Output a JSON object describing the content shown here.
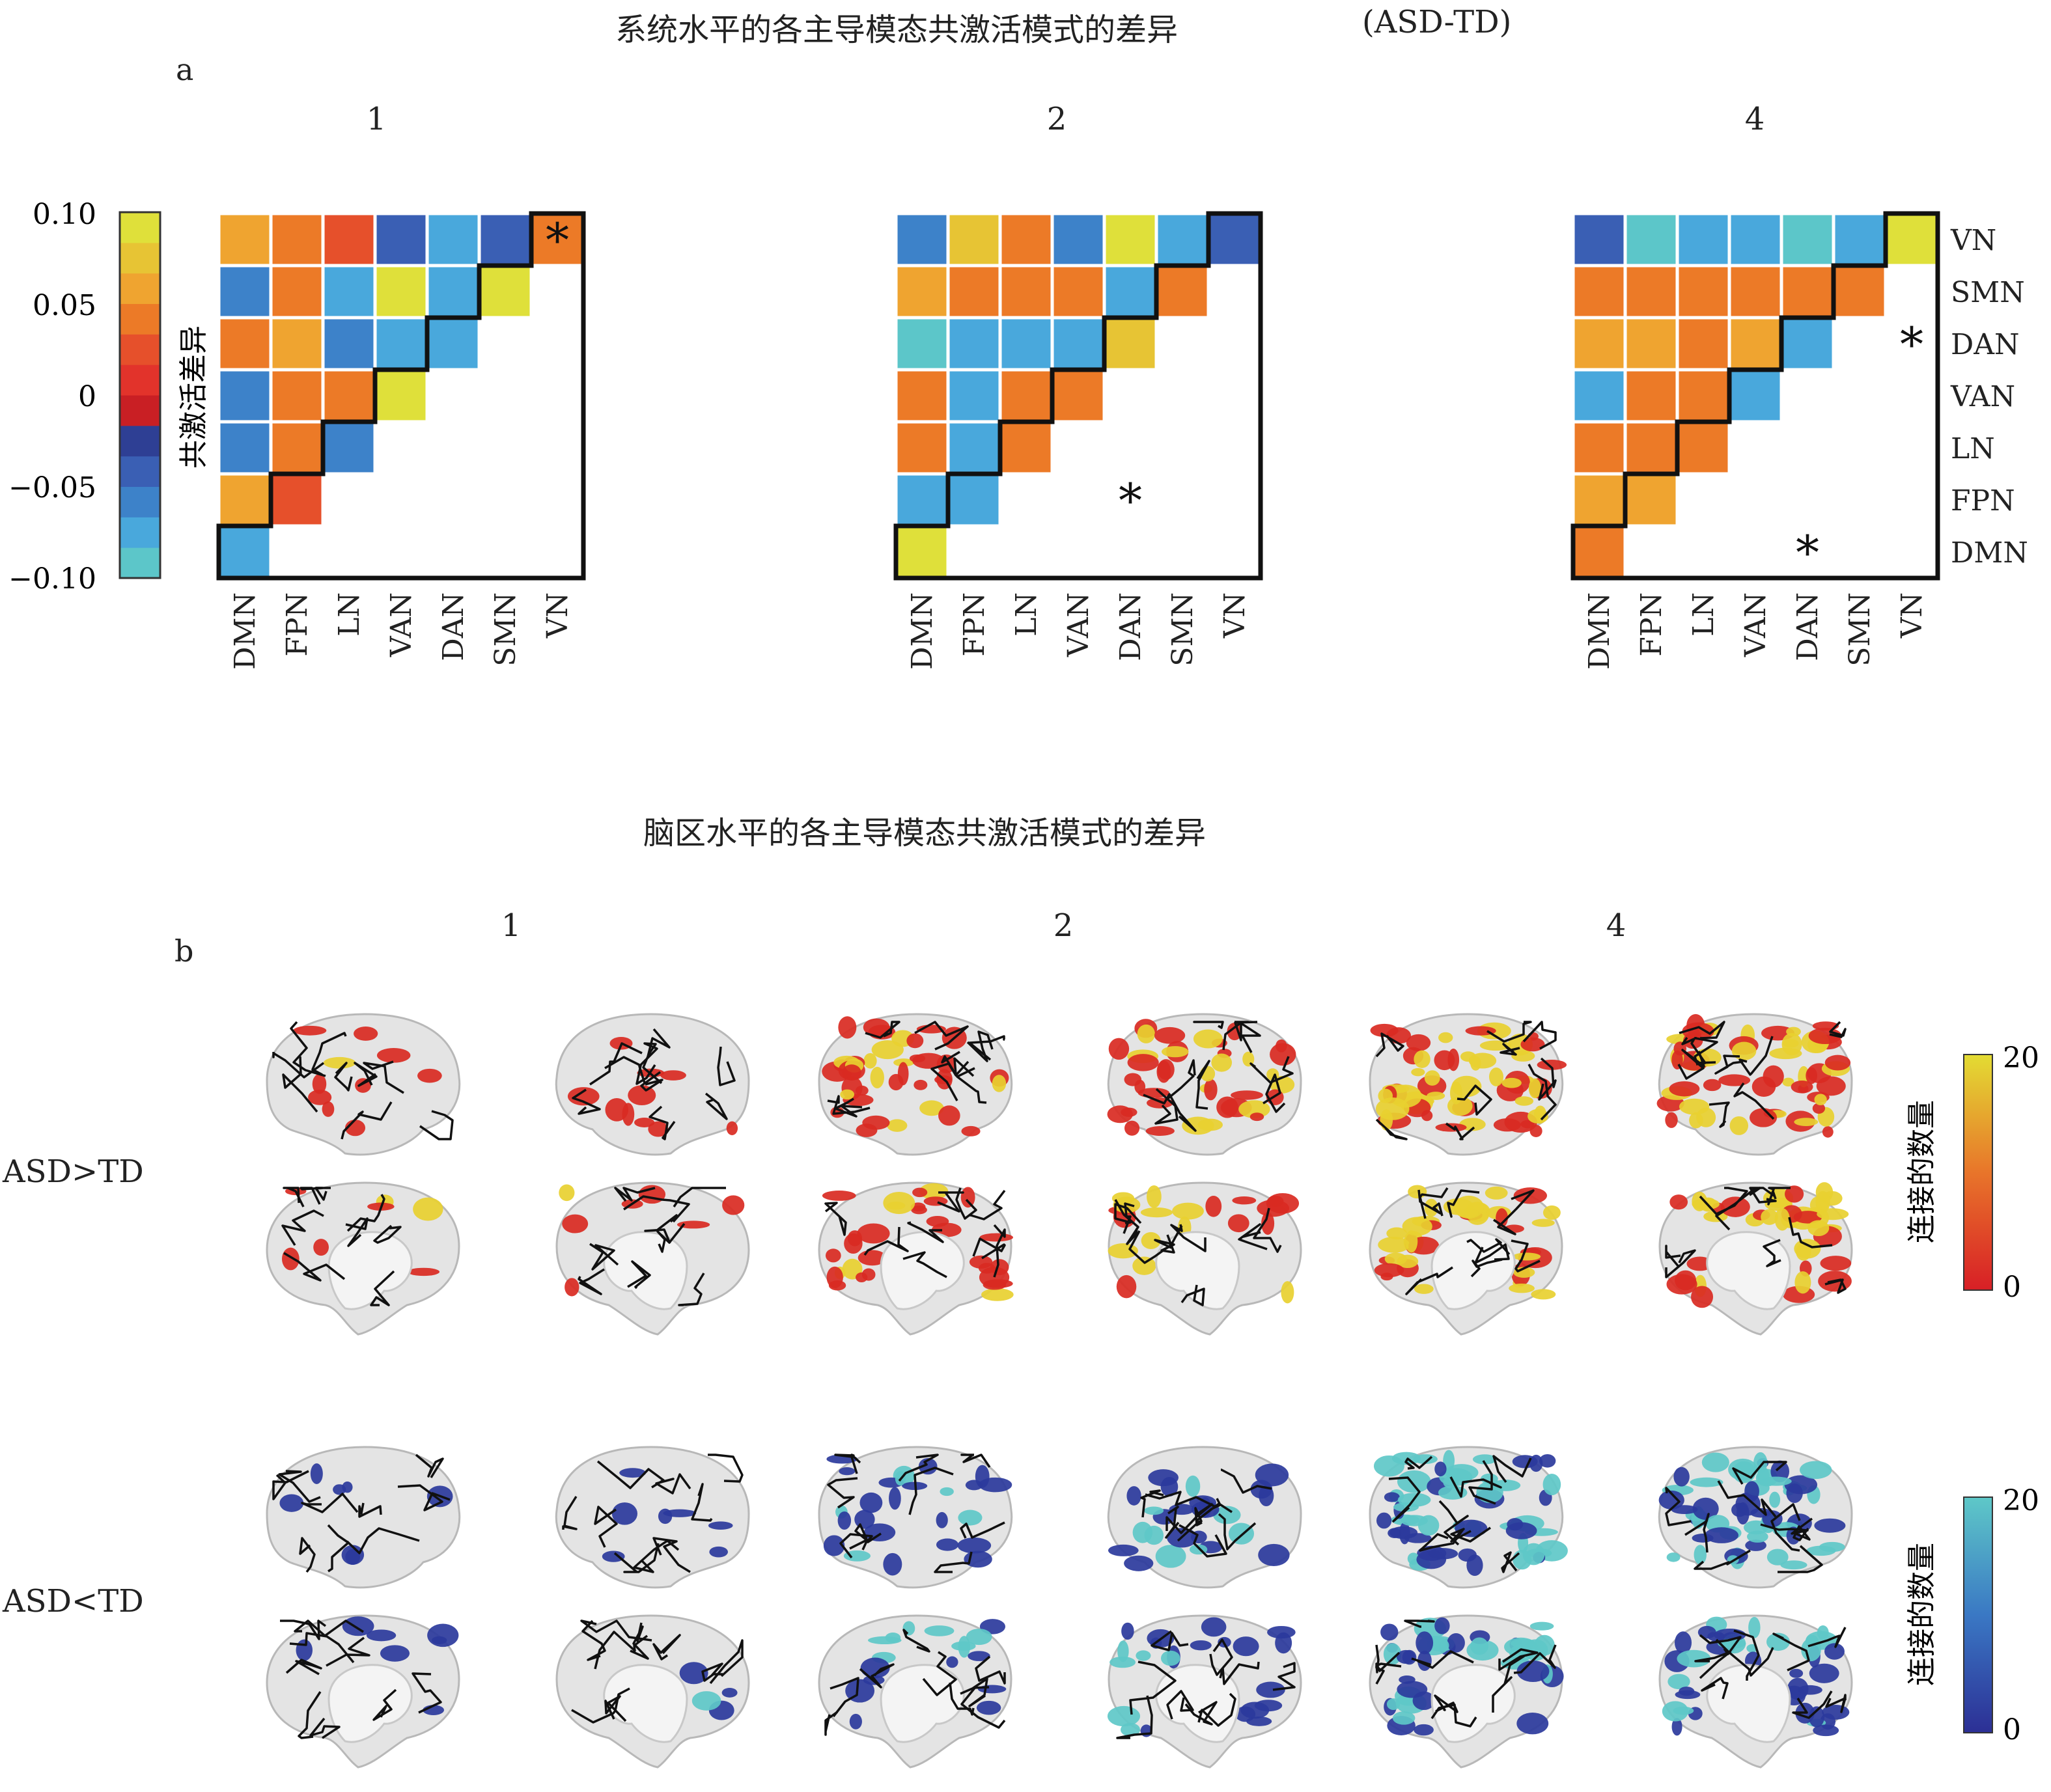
{
  "panel_a": {
    "title": "系统水平的各主导模态共激活模式的差异",
    "title_suffix": "(ASD-TD)",
    "letter": "a",
    "colorbar_label": "共激活差异",
    "colorbar_ticks": [
      "0.10",
      "0.05",
      "0",
      "−0.05",
      "−0.10"
    ]
  },
  "panel_b": {
    "title": "脑区水平的各主导模态共激活模式的差异",
    "letter": "b",
    "columns": [
      "1",
      "2",
      "4"
    ],
    "row_labels": [
      "ASD>TD",
      "ASD<TD"
    ],
    "colorbar_label": "连接的数量",
    "colorbar_top_ticks": [
      "20",
      "0"
    ],
    "colorbar_bottom_ticks": [
      "20",
      "0"
    ]
  },
  "chart_data": [
    {
      "type": "heatmap",
      "title": "1",
      "networks": [
        "DMN",
        "FPN",
        "LN",
        "VAN",
        "DAN",
        "SMN",
        "VN"
      ],
      "value_range": [
        -0.1,
        0.1
      ],
      "values": [
        [
          -0.08
        ],
        [
          0.05,
          0.03
        ],
        [
          -0.06,
          0.04,
          -0.06
        ],
        [
          -0.06,
          0.04,
          0.04,
          0.09
        ],
        [
          0.04,
          0.05,
          -0.06,
          -0.08,
          -0.07
        ],
        [
          -0.06,
          0.04,
          -0.07,
          0.09,
          -0.07,
          0.09
        ],
        [
          0.06,
          0.04,
          0.03,
          -0.05,
          -0.07,
          -0.05,
          0.04
        ]
      ],
      "significant": [
        [
          6,
          6
        ]
      ]
    },
    {
      "type": "heatmap",
      "title": "2",
      "networks": [
        "DMN",
        "FPN",
        "LN",
        "VAN",
        "DAN",
        "SMN",
        "VN"
      ],
      "value_range": [
        -0.1,
        0.1
      ],
      "values": [
        [
          0.09
        ],
        [
          -0.07,
          -0.07
        ],
        [
          0.04,
          -0.08,
          0.04
        ],
        [
          0.04,
          -0.08,
          0.04,
          0.04
        ],
        [
          -0.09,
          -0.08,
          -0.07,
          -0.07,
          0.08
        ],
        [
          0.05,
          0.04,
          0.04,
          0.04,
          -0.07,
          0.04
        ],
        [
          -0.06,
          0.08,
          0.04,
          -0.06,
          0.09,
          -0.07,
          -0.04
        ]
      ],
      "significant": [
        [
          1,
          4
        ]
      ]
    },
    {
      "type": "heatmap",
      "title": "4",
      "networks": [
        "DMN",
        "FPN",
        "LN",
        "VAN",
        "DAN",
        "SMN",
        "VN"
      ],
      "value_range": [
        -0.1,
        0.1
      ],
      "values": [
        [
          0.04
        ],
        [
          0.05,
          0.06
        ],
        [
          0.04,
          0.04,
          0.04
        ],
        [
          -0.08,
          0.04,
          0.04,
          -0.07
        ],
        [
          0.06,
          0.06,
          0.04,
          0.06,
          -0.07
        ],
        [
          0.04,
          0.04,
          0.04,
          0.04,
          0.04,
          0.04
        ],
        [
          -0.05,
          -0.09,
          -0.07,
          -0.07,
          -0.09,
          -0.07,
          0.09
        ]
      ],
      "significant": [
        [
          0,
          4
        ],
        [
          4,
          6
        ]
      ]
    }
  ],
  "colors": {
    "scale": [
      "#5cc6c9",
      "#49a8dc",
      "#3d82c9",
      "#3a5fb4",
      "#2e3f94",
      "#c91f24",
      "#e2332b",
      "#e6502b",
      "#ec7a27",
      "#efa430",
      "#e7c434",
      "#dfe03a"
    ],
    "brain_pos_low": "#d92a22",
    "brain_pos_high": "#e8d030",
    "brain_neg_low": "#2b3a9c",
    "brain_neg_high": "#5ec8c8",
    "brain_base": "#e4e4e4",
    "outline": "#111111"
  }
}
